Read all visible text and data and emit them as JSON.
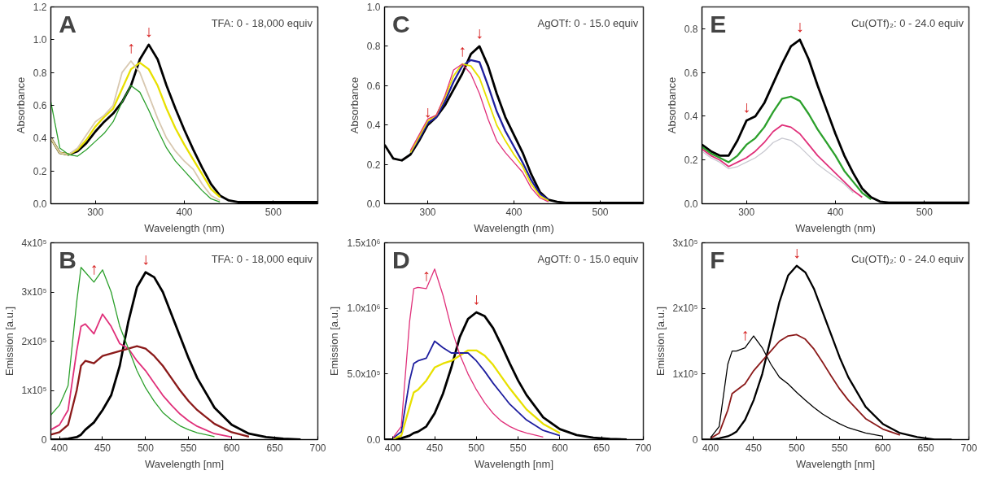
{
  "chart_data": [
    {
      "type": "line",
      "xlabel": "Wavelength (nm)",
      "ylabel": "Absorbance",
      "xlim": [
        250,
        550
      ],
      "ylim": [
        0,
        1.2
      ],
      "xticks": [
        300,
        400,
        500
      ],
      "yticks": [
        {
          "value": 0,
          "label": "0.0"
        },
        0.2,
        0.4,
        0.6,
        0.8,
        {
          "value": 1,
          "label": "1.0"
        },
        1.2
      ],
      "grid": false,
      "annotations": [
        "A",
        "TFA: 0 - 18,000 equiv",
        {
          "text": "↑",
          "x": 340,
          "y": 0.87
        },
        {
          "text": "↓",
          "x": 360,
          "y": 0.97
        }
      ],
      "x": [
        250,
        260,
        270,
        280,
        290,
        300,
        310,
        320,
        330,
        340,
        350,
        360,
        370,
        380,
        390,
        400,
        410,
        420,
        430,
        440,
        450,
        460,
        480,
        500,
        550
      ],
      "series": [
        {
          "color": "#000000",
          "values": [
            0.4,
            0.31,
            0.3,
            0.32,
            0.37,
            0.44,
            0.5,
            0.55,
            0.62,
            0.72,
            0.88,
            0.97,
            0.88,
            0.72,
            0.58,
            0.45,
            0.33,
            0.22,
            0.12,
            0.05,
            0.02,
            0.01,
            0.01,
            0.01,
            0.01
          ]
        },
        {
          "color": "#e8e000",
          "values": [
            0.4,
            0.31,
            0.3,
            0.33,
            0.39,
            0.47,
            0.53,
            0.58,
            0.7,
            0.82,
            0.86,
            0.82,
            0.72,
            0.58,
            0.46,
            0.36,
            0.27,
            0.18,
            0.09,
            0.04,
            null,
            null,
            null,
            null,
            null
          ]
        },
        {
          "color": "#d8c8b0",
          "values": [
            0.4,
            0.31,
            0.3,
            0.34,
            0.42,
            0.5,
            0.54,
            0.6,
            0.8,
            0.87,
            0.8,
            0.66,
            0.52,
            0.4,
            0.32,
            0.26,
            0.21,
            0.12,
            0.05,
            0.02,
            null,
            null,
            null,
            null,
            null
          ]
        },
        {
          "color": "#2ca02c",
          "values": [
            0.62,
            0.34,
            0.3,
            0.29,
            0.33,
            0.38,
            0.43,
            0.5,
            0.62,
            0.72,
            0.68,
            0.57,
            0.45,
            0.34,
            0.26,
            0.2,
            0.14,
            0.08,
            0.03,
            0.01,
            null,
            null,
            null,
            null,
            null
          ]
        }
      ]
    },
    {
      "type": "line",
      "xlabel": "Wavelength (nm)",
      "ylabel": "Absorbance",
      "xlim": [
        250,
        550
      ],
      "ylim": [
        0,
        1.0
      ],
      "xticks": [
        300,
        400,
        500
      ],
      "yticks": [
        {
          "value": 0,
          "label": "0.0"
        },
        0.2,
        0.4,
        0.6,
        0.8,
        {
          "value": 1,
          "label": "1.0"
        }
      ],
      "grid": false,
      "annotations": [
        "C",
        "AgOTf: 0 - 15.0 equiv",
        {
          "text": "↓",
          "x": 300,
          "y": 0.4
        },
        {
          "text": "↑",
          "x": 340,
          "y": 0.71
        },
        {
          "text": "↓",
          "x": 360,
          "y": 0.8
        }
      ],
      "x": [
        250,
        260,
        270,
        280,
        290,
        300,
        310,
        320,
        330,
        340,
        350,
        360,
        370,
        380,
        390,
        400,
        410,
        420,
        430,
        440,
        450,
        460,
        480,
        500,
        550
      ],
      "series": [
        {
          "color": "#000000",
          "values": [
            0.3,
            0.23,
            0.22,
            0.25,
            0.32,
            0.4,
            0.44,
            0.5,
            0.58,
            0.66,
            0.76,
            0.8,
            0.7,
            0.56,
            0.44,
            0.35,
            0.26,
            0.15,
            0.06,
            0.02,
            0.01,
            0.005,
            0.005,
            0.005,
            0.005
          ]
        },
        {
          "color": "#1f1f9f",
          "values": [
            null,
            null,
            null,
            0.26,
            0.33,
            0.41,
            0.44,
            0.52,
            0.62,
            0.7,
            0.73,
            0.72,
            0.6,
            0.47,
            0.37,
            0.29,
            0.21,
            0.12,
            0.05,
            0.02,
            null,
            null,
            null,
            null,
            null
          ]
        },
        {
          "color": "#e8e000",
          "values": [
            null,
            null,
            null,
            0.26,
            0.34,
            0.42,
            0.45,
            0.54,
            0.65,
            0.71,
            0.7,
            0.64,
            0.52,
            0.4,
            0.32,
            0.25,
            0.19,
            0.1,
            0.04,
            0.015,
            null,
            null,
            null,
            null,
            null
          ]
        },
        {
          "color": "#e0307a",
          "values": [
            null,
            null,
            null,
            0.27,
            0.35,
            0.43,
            0.45,
            0.55,
            0.68,
            0.71,
            0.66,
            0.56,
            0.43,
            0.32,
            0.26,
            0.21,
            0.16,
            0.08,
            0.03,
            0.01,
            null,
            null,
            null,
            null,
            null
          ]
        }
      ]
    },
    {
      "type": "line",
      "xlabel": "Wavelength (nm)",
      "ylabel": "Absorbance",
      "xlim": [
        250,
        550
      ],
      "ylim": [
        0,
        0.9
      ],
      "xticks": [
        300,
        400,
        500
      ],
      "yticks": [
        {
          "value": 0,
          "label": "0.0"
        },
        0.2,
        0.4,
        0.6,
        0.8
      ],
      "grid": false,
      "annotations": [
        "E",
        "Cu(OTf)₂: 0 - 24.0 equiv",
        {
          "text": "↓",
          "x": 300,
          "y": 0.38
        },
        {
          "text": "↓",
          "x": 360,
          "y": 0.75
        }
      ],
      "x": [
        250,
        260,
        270,
        280,
        290,
        300,
        310,
        320,
        330,
        340,
        350,
        360,
        370,
        380,
        390,
        400,
        410,
        420,
        430,
        440,
        450,
        460,
        480,
        500,
        550
      ],
      "series": [
        {
          "color": "#000000",
          "values": [
            0.27,
            0.24,
            0.22,
            0.22,
            0.29,
            0.38,
            0.4,
            0.46,
            0.55,
            0.64,
            0.72,
            0.75,
            0.66,
            0.54,
            0.43,
            0.32,
            0.22,
            0.14,
            0.07,
            0.03,
            0.01,
            0.005,
            0.005,
            0.005,
            0.005
          ]
        },
        {
          "color": "#2ca02c",
          "values": [
            0.26,
            0.23,
            0.21,
            0.19,
            0.22,
            0.27,
            0.3,
            0.35,
            0.42,
            0.48,
            0.49,
            0.47,
            0.41,
            0.34,
            0.28,
            0.22,
            0.15,
            0.1,
            0.05,
            0.02,
            null,
            null,
            null,
            null,
            null
          ]
        },
        {
          "color": "#e0307a",
          "values": [
            0.25,
            0.22,
            0.2,
            0.17,
            0.19,
            0.21,
            0.24,
            0.28,
            0.33,
            0.36,
            0.35,
            0.32,
            0.27,
            0.22,
            0.18,
            0.14,
            0.1,
            0.06,
            0.03,
            null,
            null,
            null,
            null,
            null,
            null
          ]
        },
        {
          "color": "#c8c8d0",
          "values": [
            0.24,
            0.21,
            0.19,
            0.16,
            0.17,
            0.19,
            0.21,
            0.24,
            0.28,
            0.3,
            0.29,
            0.26,
            0.22,
            0.18,
            0.15,
            0.12,
            0.09,
            0.05,
            null,
            null,
            null,
            null,
            null,
            null,
            null
          ]
        }
      ]
    },
    {
      "type": "line",
      "xlabel": "Wavelength [nm]",
      "ylabel": "Emission [a.u.]",
      "xlim": [
        390,
        700
      ],
      "ylim": [
        0,
        400000
      ],
      "xticks": [
        400,
        450,
        500,
        550,
        600,
        650,
        700
      ],
      "yticks": [
        0,
        {
          "value": 100000,
          "label": "1x10⁵"
        },
        {
          "value": 200000,
          "label": "2x10⁵"
        },
        {
          "value": 300000,
          "label": "3x10⁵"
        },
        {
          "value": 400000,
          "label": "4x10⁵"
        }
      ],
      "grid": false,
      "annotations": [
        "B",
        "TFA: 0 - 18,000 equiv",
        {
          "text": "↑",
          "x": 440,
          "y": 320000
        },
        {
          "text": "↓",
          "x": 500,
          "y": 340000
        }
      ],
      "x": [
        390,
        400,
        410,
        420,
        425,
        430,
        440,
        450,
        460,
        470,
        480,
        490,
        500,
        510,
        520,
        530,
        540,
        550,
        560,
        580,
        600,
        620,
        640,
        660,
        680
      ],
      "series": [
        {
          "color": "#000000",
          "values": [
            0,
            0,
            2000,
            5000,
            10000,
            20000,
            35000,
            60000,
            90000,
            150000,
            240000,
            310000,
            340000,
            330000,
            300000,
            255000,
            210000,
            165000,
            125000,
            65000,
            30000,
            12000,
            5000,
            2000,
            0
          ]
        },
        {
          "color": "#8b1a1a",
          "values": [
            10000,
            15000,
            30000,
            100000,
            150000,
            160000,
            155000,
            170000,
            175000,
            180000,
            185000,
            190000,
            185000,
            170000,
            150000,
            125000,
            100000,
            78000,
            60000,
            32000,
            15000,
            6000,
            null,
            null,
            null
          ]
        },
        {
          "color": "#e0307a",
          "values": [
            20000,
            30000,
            60000,
            180000,
            230000,
            235000,
            215000,
            255000,
            230000,
            195000,
            185000,
            160000,
            140000,
            115000,
            90000,
            70000,
            52000,
            38000,
            27000,
            12000,
            5000,
            null,
            null,
            null,
            null
          ]
        },
        {
          "color": "#2ca02c",
          "values": [
            50000,
            70000,
            110000,
            280000,
            350000,
            340000,
            320000,
            345000,
            300000,
            230000,
            185000,
            140000,
            105000,
            78000,
            55000,
            40000,
            28000,
            20000,
            14000,
            6000,
            null,
            null,
            null,
            null,
            null
          ]
        }
      ]
    },
    {
      "type": "line",
      "xlabel": "Wavelength [nm]",
      "ylabel": "Emission [a.u.]",
      "xlim": [
        390,
        700
      ],
      "ylim": [
        0,
        1500000
      ],
      "xticks": [
        400,
        450,
        500,
        550,
        600,
        650,
        700
      ],
      "yticks": [
        {
          "value": 0,
          "label": "0.0"
        },
        {
          "value": 500000,
          "label": "5.0x10⁵"
        },
        {
          "value": 1000000,
          "label": "1.0x10⁶"
        },
        {
          "value": 1500000,
          "label": "1.5x10⁶"
        }
      ],
      "grid": false,
      "annotations": [
        "D",
        "AgOTf: 0 - 15.0 equiv",
        {
          "text": "↑",
          "x": 440,
          "y": 1150000
        },
        {
          "text": "↓",
          "x": 500,
          "y": 970000
        }
      ],
      "x": [
        390,
        400,
        410,
        420,
        425,
        430,
        440,
        450,
        460,
        470,
        480,
        490,
        500,
        510,
        520,
        530,
        540,
        550,
        560,
        580,
        600,
        620,
        640,
        660,
        680
      ],
      "series": [
        {
          "color": "#000000",
          "values": [
            0,
            0,
            10000,
            30000,
            50000,
            60000,
            100000,
            200000,
            350000,
            550000,
            780000,
            920000,
            970000,
            940000,
            850000,
            720000,
            580000,
            450000,
            340000,
            170000,
            80000,
            35000,
            15000,
            5000,
            0
          ]
        },
        {
          "color": "#e8e000",
          "values": [
            null,
            5000,
            30000,
            250000,
            360000,
            380000,
            450000,
            550000,
            580000,
            600000,
            640000,
            680000,
            680000,
            640000,
            570000,
            480000,
            390000,
            310000,
            230000,
            120000,
            50000,
            null,
            null,
            null,
            null
          ]
        },
        {
          "color": "#1f1f9f",
          "values": [
            null,
            10000,
            60000,
            450000,
            580000,
            600000,
            620000,
            750000,
            700000,
            660000,
            660000,
            660000,
            600000,
            520000,
            430000,
            350000,
            270000,
            210000,
            150000,
            70000,
            30000,
            null,
            null,
            null,
            null
          ]
        },
        {
          "color": "#e0307a",
          "values": [
            null,
            15000,
            100000,
            900000,
            1150000,
            1160000,
            1150000,
            1300000,
            1100000,
            850000,
            650000,
            500000,
            380000,
            280000,
            200000,
            140000,
            100000,
            70000,
            50000,
            20000,
            null,
            null,
            null,
            null,
            null
          ]
        }
      ]
    },
    {
      "type": "line",
      "xlabel": "Wavelength [nm]",
      "ylabel": "Emission [a.u.]",
      "xlim": [
        390,
        700
      ],
      "ylim": [
        0,
        300000
      ],
      "xticks": [
        400,
        450,
        500,
        550,
        600,
        650,
        700
      ],
      "yticks": [
        0,
        {
          "value": 100000,
          "label": "1x10⁵"
        },
        {
          "value": 200000,
          "label": "2x10⁵"
        },
        {
          "value": 300000,
          "label": "3x10⁵"
        }
      ],
      "grid": false,
      "annotations": [
        "F",
        "Cu(OTf)₂: 0 - 24.0 equiv",
        {
          "text": "↑",
          "x": 440,
          "y": 140000
        },
        {
          "text": "↓",
          "x": 500,
          "y": 265000
        }
      ],
      "x": [
        390,
        400,
        410,
        420,
        425,
        430,
        440,
        450,
        460,
        470,
        480,
        490,
        500,
        510,
        520,
        530,
        540,
        550,
        560,
        580,
        600,
        620,
        640,
        660,
        680
      ],
      "series": [
        {
          "color": "#000000",
          "values": [
            0,
            0,
            2000,
            5000,
            8000,
            12000,
            30000,
            60000,
            100000,
            155000,
            210000,
            250000,
            265000,
            255000,
            230000,
            195000,
            160000,
            125000,
            95000,
            50000,
            24000,
            10000,
            4000,
            0,
            0
          ]
        },
        {
          "color": "#8b1a1a",
          "values": [
            null,
            2000,
            10000,
            45000,
            70000,
            75000,
            85000,
            105000,
            120000,
            135000,
            150000,
            158000,
            160000,
            153000,
            138000,
            118000,
            97000,
            77000,
            60000,
            32000,
            16000,
            7000,
            null,
            null,
            null
          ]
        },
        {
          "color": "#000000",
          "values": [
            null,
            3000,
            20000,
            115000,
            135000,
            135000,
            140000,
            158000,
            140000,
            115000,
            95000,
            85000,
            72000,
            60000,
            49000,
            39000,
            31000,
            24000,
            18000,
            10000,
            5000,
            null,
            null,
            null,
            null
          ]
        }
      ]
    }
  ]
}
